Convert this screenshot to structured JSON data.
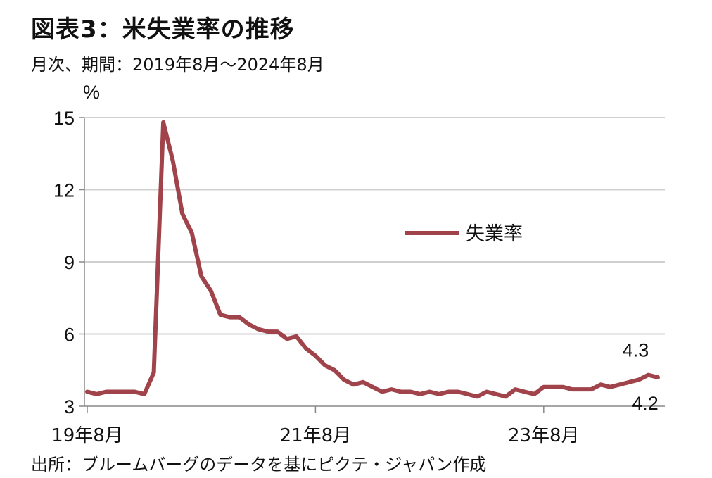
{
  "title": "図表3：米失業率の推移",
  "subtitle": "月次、期間：2019年8月～2024年8月",
  "source": "出所：ブルームバーグのデータを基にピクテ・ジャパン作成",
  "chart_data": {
    "type": "line",
    "ylabel": "%",
    "ylim": [
      3,
      15
    ],
    "yticks": [
      3,
      6,
      9,
      12,
      15
    ],
    "xtick_labels": [
      {
        "label": "19年8月",
        "index": 0
      },
      {
        "label": "21年8月",
        "index": 24
      },
      {
        "label": "23年8月",
        "index": 48
      }
    ],
    "grid": true,
    "legend": {
      "position": "center-right"
    },
    "series": [
      {
        "name": "失業率",
        "color": "#a0434a",
        "x": [
          "2019-08",
          "2019-09",
          "2019-10",
          "2019-11",
          "2019-12",
          "2020-01",
          "2020-02",
          "2020-03",
          "2020-04",
          "2020-05",
          "2020-06",
          "2020-07",
          "2020-08",
          "2020-09",
          "2020-10",
          "2020-11",
          "2020-12",
          "2021-01",
          "2021-02",
          "2021-03",
          "2021-04",
          "2021-05",
          "2021-06",
          "2021-07",
          "2021-08",
          "2021-09",
          "2021-10",
          "2021-11",
          "2021-12",
          "2022-01",
          "2022-02",
          "2022-03",
          "2022-04",
          "2022-05",
          "2022-06",
          "2022-07",
          "2022-08",
          "2022-09",
          "2022-10",
          "2022-11",
          "2022-12",
          "2023-01",
          "2023-02",
          "2023-03",
          "2023-04",
          "2023-05",
          "2023-06",
          "2023-07",
          "2023-08",
          "2023-09",
          "2023-10",
          "2023-11",
          "2023-12",
          "2024-01",
          "2024-02",
          "2024-03",
          "2024-04",
          "2024-05",
          "2024-06",
          "2024-07",
          "2024-08"
        ],
        "values": [
          3.6,
          3.5,
          3.6,
          3.6,
          3.6,
          3.6,
          3.5,
          4.4,
          14.8,
          13.2,
          11.0,
          10.2,
          8.4,
          7.8,
          6.8,
          6.7,
          6.7,
          6.4,
          6.2,
          6.1,
          6.1,
          5.8,
          5.9,
          5.4,
          5.1,
          4.7,
          4.5,
          4.1,
          3.9,
          4.0,
          3.8,
          3.6,
          3.7,
          3.6,
          3.6,
          3.5,
          3.6,
          3.5,
          3.6,
          3.6,
          3.5,
          3.4,
          3.6,
          3.5,
          3.4,
          3.7,
          3.6,
          3.5,
          3.8,
          3.8,
          3.8,
          3.7,
          3.7,
          3.7,
          3.9,
          3.8,
          3.9,
          4.0,
          4.1,
          4.3,
          4.2
        ]
      }
    ],
    "annotations": [
      {
        "text": "4.3",
        "index": 59,
        "value": 4.3,
        "placement": "above"
      },
      {
        "text": "4.2",
        "index": 60,
        "value": 4.2,
        "placement": "below"
      }
    ]
  }
}
